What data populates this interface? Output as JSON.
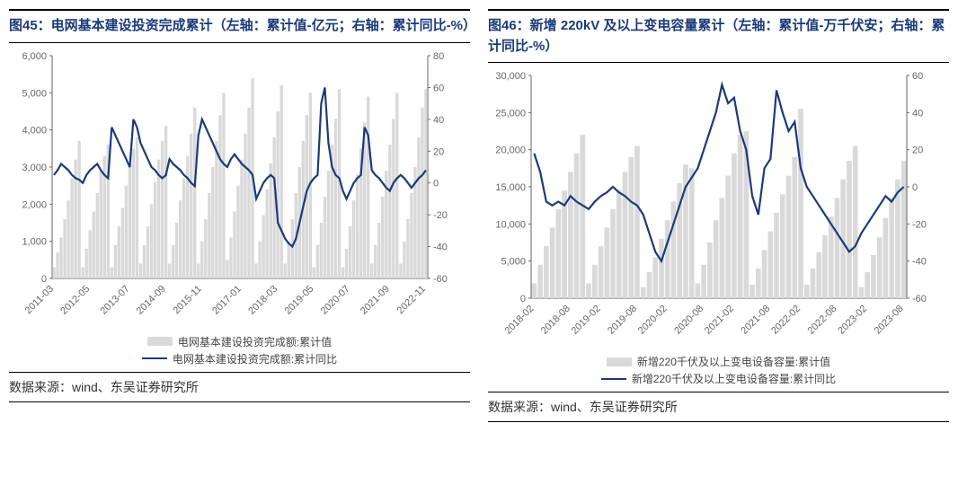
{
  "colors": {
    "title": "#1b3a7a",
    "bar": "#d9d9d9",
    "line": "#1b3a7a",
    "axis": "#666666",
    "grid": "#cccccc",
    "bg": "#ffffff"
  },
  "left": {
    "title": "图45：电网基本建设投资完成累计（左轴：累计值-亿元；右轴：累计同比-%）",
    "legend_bar": "电网基本建设投资完成额:累计值",
    "legend_line": "电网基本建设投资完成额:累计同比",
    "source": "数据来源：wind、东吴证券研究所",
    "y_left": {
      "min": 0,
      "max": 6000,
      "step": 1000
    },
    "y_right": {
      "min": -60,
      "max": 80,
      "step": 20
    },
    "x_labels": [
      "2011-03",
      "2012-05",
      "2013-07",
      "2014-09",
      "2015-11",
      "2017-01",
      "2018-03",
      "2019-05",
      "2020-07",
      "2021-09",
      "2022-11"
    ],
    "bars": [
      300,
      700,
      1100,
      1600,
      2100,
      2700,
      3200,
      3700,
      300,
      800,
      1300,
      1800,
      2300,
      2900,
      3300,
      3600,
      300,
      900,
      1400,
      1900,
      2500,
      3100,
      3500,
      3800,
      400,
      900,
      1400,
      2000,
      2600,
      3200,
      3700,
      4100,
      400,
      900,
      1500,
      2100,
      2700,
      3300,
      3900,
      4600,
      400,
      1000,
      1600,
      2300,
      3000,
      3700,
      4400,
      5000,
      500,
      1100,
      1800,
      2500,
      3200,
      3900,
      4600,
      5400,
      400,
      1000,
      1700,
      2400,
      3100,
      3800,
      4500,
      5200,
      400,
      1000,
      1600,
      2300,
      3000,
      3700,
      4400,
      5000,
      300,
      900,
      1500,
      2200,
      2900,
      3600,
      4300,
      5100,
      300,
      800,
      1400,
      2100,
      2800,
      3500,
      4200,
      4900,
      400,
      900,
      1500,
      2200,
      2900,
      3600,
      4300,
      5000,
      400,
      1000,
      1600,
      2300,
      3000,
      3800,
      4600,
      5100
    ],
    "line": [
      5,
      8,
      12,
      10,
      8,
      5,
      3,
      2,
      0,
      5,
      8,
      10,
      12,
      8,
      5,
      3,
      35,
      30,
      25,
      20,
      15,
      10,
      40,
      35,
      25,
      20,
      15,
      10,
      8,
      5,
      3,
      5,
      15,
      12,
      10,
      8,
      5,
      3,
      0,
      -2,
      30,
      40,
      35,
      30,
      25,
      20,
      15,
      12,
      10,
      15,
      18,
      15,
      12,
      10,
      8,
      5,
      -10,
      -5,
      0,
      3,
      5,
      3,
      -25,
      -30,
      -35,
      -38,
      -40,
      -35,
      -25,
      -15,
      -5,
      0,
      3,
      5,
      50,
      60,
      25,
      10,
      5,
      3,
      -5,
      -10,
      -5,
      0,
      3,
      5,
      35,
      30,
      8,
      5,
      3,
      0,
      -3,
      -5,
      0,
      3,
      5,
      3,
      0,
      -3,
      0,
      3,
      5,
      8
    ]
  },
  "right": {
    "title": "图46：新增 220kV 及以上变电容量累计（左轴：累计值-万千伏安；右轴：累计同比-%）",
    "legend_bar": "新增220千伏及以上变电设备容量:累计值",
    "legend_line": "新增220千伏及以上变电设备容量:累计同比",
    "source": "数据来源：wind、东吴证券研究所",
    "y_left": {
      "min": 0,
      "max": 30000,
      "step": 5000
    },
    "y_right": {
      "min": -60,
      "max": 60,
      "step": 20
    },
    "x_labels": [
      "2018-02",
      "2018-08",
      "2019-02",
      "2019-08",
      "2020-02",
      "2020-08",
      "2021-02",
      "2021-08",
      "2022-02",
      "2022-08",
      "2023-02",
      "2023-08"
    ],
    "bars": [
      2000,
      4500,
      7000,
      9500,
      12000,
      14500,
      17000,
      19500,
      22000,
      2000,
      4500,
      7000,
      9500,
      12000,
      14500,
      17000,
      19000,
      20500,
      1500,
      3500,
      5500,
      8000,
      10500,
      13000,
      15500,
      18000,
      17500,
      2000,
      4500,
      7500,
      10500,
      13500,
      16500,
      19500,
      22000,
      22500,
      1800,
      4000,
      6500,
      9000,
      11500,
      14000,
      16500,
      19000,
      25500,
      1800,
      4000,
      6200,
      8500,
      11000,
      13500,
      16000,
      18500,
      20500,
      1500,
      3500,
      5800,
      8200,
      10800,
      13500,
      16000,
      18500
    ],
    "line": [
      18,
      8,
      -8,
      -10,
      -8,
      -10,
      -5,
      -8,
      -10,
      -12,
      -8,
      -5,
      -3,
      0,
      -3,
      -5,
      -8,
      -10,
      -15,
      -25,
      -35,
      -40,
      -30,
      -20,
      -10,
      0,
      5,
      10,
      20,
      30,
      40,
      55,
      45,
      48,
      30,
      20,
      -5,
      -15,
      10,
      15,
      52,
      40,
      30,
      35,
      10,
      0,
      -5,
      -10,
      -15,
      -20,
      -25,
      -30,
      -35,
      -32,
      -25,
      -20,
      -15,
      -10,
      -5,
      -8,
      -3,
      0
    ]
  }
}
